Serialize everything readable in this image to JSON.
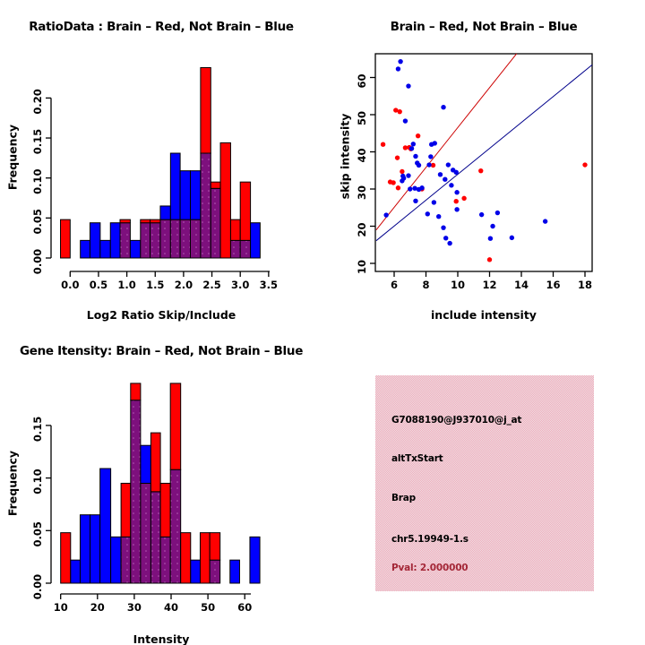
{
  "figure": {
    "background": "#ffffff",
    "colors": {
      "red": "#ff0000",
      "blue": "#0000ff",
      "scatter_blue": "#0000e8",
      "purple": "#7d107d",
      "purple_dot": "#b55cb5",
      "red_line": "#cd0000",
      "blue_line": "#00008b",
      "axis": "#000000",
      "pval_red": "#a42838",
      "pink_checker_a": "#f5a8ba",
      "pink_checker_b": "#e9e2e4"
    }
  },
  "chart_data": [
    {
      "id": "ratio_histogram",
      "type": "bar",
      "subtype": "overlapping_histograms",
      "title": "RatioData : Brain – Red, Not Brain – Blue",
      "xlabel": "Log2 Ratio Skip/Include",
      "ylabel": "Frequency",
      "xlim": [
        -0.25,
        3.5
      ],
      "ylim": [
        0,
        0.24
      ],
      "x_ticks": [
        "0.0",
        "0.5",
        "1.0",
        "1.5",
        "2.0",
        "2.5",
        "3.0",
        "3.5"
      ],
      "y_ticks": [
        "0.00",
        "0.05",
        "0.10",
        "0.15",
        "0.20"
      ],
      "legend": {
        "red_series": "Brain",
        "blue_series": "Not Brain",
        "overlap": "purple"
      },
      "bars_format": [
        "x0",
        "x1",
        "red_height",
        "blue_height"
      ],
      "bars": [
        [
          -0.17,
          0.0,
          0.048,
          0
        ],
        [
          0.18,
          0.35,
          0,
          0.022
        ],
        [
          0.35,
          0.53,
          0,
          0.044
        ],
        [
          0.53,
          0.71,
          0,
          0.022
        ],
        [
          0.71,
          0.88,
          0,
          0.044
        ],
        [
          0.88,
          1.06,
          0.048,
          0.044
        ],
        [
          1.06,
          1.24,
          0,
          0.022
        ],
        [
          1.24,
          1.41,
          0.048,
          0.044
        ],
        [
          1.41,
          1.59,
          0.048,
          0.044
        ],
        [
          1.59,
          1.77,
          0.048,
          0.065
        ],
        [
          1.77,
          1.94,
          0.048,
          0.131
        ],
        [
          1.94,
          2.12,
          0.048,
          0.109
        ],
        [
          2.12,
          2.3,
          0.048,
          0.109
        ],
        [
          2.3,
          2.48,
          0.238,
          0.131
        ],
        [
          2.48,
          2.65,
          0.095,
          0.087
        ],
        [
          2.65,
          2.83,
          0.144,
          0
        ],
        [
          2.83,
          3.0,
          0.048,
          0.022
        ],
        [
          3.0,
          3.18,
          0.095,
          0.022
        ],
        [
          3.18,
          3.35,
          0,
          0.044
        ]
      ]
    },
    {
      "id": "intensity_scatter",
      "type": "scatter",
      "title": "Brain – Red, Not Brain – Blue",
      "xlabel": "include intensity",
      "ylabel": "skip intensity",
      "xlim": [
        4.9,
        18.5
      ],
      "ylim": [
        8,
        66.5
      ],
      "x_ticks": [
        "6",
        "8",
        "10",
        "12",
        "14",
        "16",
        "18"
      ],
      "y_ticks": [
        "10",
        "20",
        "30",
        "40",
        "50",
        "60"
      ],
      "series": [
        {
          "name": "Brain",
          "color_key": "red",
          "points": [
            [
              5.3,
              42.0
            ],
            [
              6.1,
              51.2
            ],
            [
              6.35,
              50.8
            ],
            [
              6.2,
              38.4
            ],
            [
              5.75,
              31.9
            ],
            [
              5.95,
              31.7
            ],
            [
              6.25,
              30.3
            ],
            [
              6.5,
              34.7
            ],
            [
              6.7,
              41.1
            ],
            [
              6.95,
              41.2
            ],
            [
              7.05,
              40.8
            ],
            [
              7.5,
              44.3
            ],
            [
              8.45,
              36.4
            ],
            [
              7.75,
              30.0
            ],
            [
              9.9,
              26.7
            ],
            [
              10.4,
              27.5
            ],
            [
              11.45,
              34.9
            ],
            [
              12.0,
              11.0
            ],
            [
              18.0,
              36.5
            ]
          ]
        },
        {
          "name": "Not Brain",
          "color_key": "scatter_blue",
          "points": [
            [
              6.4,
              64.3
            ],
            [
              6.25,
              62.3
            ],
            [
              6.9,
              57.7
            ],
            [
              9.1,
              52.0
            ],
            [
              6.7,
              48.3
            ],
            [
              7.2,
              42.1
            ],
            [
              8.35,
              42.0
            ],
            [
              8.55,
              42.3
            ],
            [
              7.1,
              40.9
            ],
            [
              7.35,
              38.8
            ],
            [
              8.3,
              38.7
            ],
            [
              7.45,
              37.0
            ],
            [
              7.55,
              36.4
            ],
            [
              8.2,
              36.5
            ],
            [
              9.4,
              36.5
            ],
            [
              6.55,
              33.5
            ],
            [
              6.9,
              33.6
            ],
            [
              6.6,
              32.9
            ],
            [
              6.5,
              32.2
            ],
            [
              8.9,
              33.9
            ],
            [
              9.2,
              32.6
            ],
            [
              9.7,
              35.1
            ],
            [
              9.9,
              34.5
            ],
            [
              7.0,
              30.0
            ],
            [
              7.3,
              30.2
            ],
            [
              7.55,
              29.9
            ],
            [
              7.75,
              30.3
            ],
            [
              9.6,
              31.0
            ],
            [
              9.95,
              29.1
            ],
            [
              7.35,
              26.8
            ],
            [
              8.5,
              26.4
            ],
            [
              8.1,
              23.3
            ],
            [
              8.8,
              22.6
            ],
            [
              9.95,
              24.5
            ],
            [
              5.5,
              23.0
            ],
            [
              9.1,
              19.6
            ],
            [
              9.25,
              16.8
            ],
            [
              9.5,
              15.4
            ],
            [
              11.5,
              23.1
            ],
            [
              12.5,
              23.6
            ],
            [
              12.2,
              20.0
            ],
            [
              12.05,
              16.7
            ],
            [
              13.4,
              16.9
            ],
            [
              15.5,
              21.3
            ]
          ]
        }
      ],
      "fit_lines": [
        {
          "name": "brain fit",
          "color_key": "red_line",
          "p1": [
            4.87,
            19.0
          ],
          "p2": [
            13.7,
            66.4
          ]
        },
        {
          "name": "not brain fit",
          "color_key": "blue_line",
          "p1": [
            4.87,
            16.1
          ],
          "p2": [
            18.45,
            63.4
          ]
        }
      ]
    },
    {
      "id": "gene_intensity_histogram",
      "type": "bar",
      "subtype": "overlapping_histograms",
      "title": "Gene Itensity: Brain – Red, Not Brain – Blue",
      "xlabel": "Intensity",
      "ylabel": "Frequency",
      "xlim": [
        10,
        65
      ],
      "ylim": [
        0,
        0.19
      ],
      "x_ticks": [
        "10",
        "20",
        "30",
        "40",
        "50",
        "60"
      ],
      "y_ticks": [
        "0.00",
        "0.05",
        "0.10",
        "0.15"
      ],
      "legend": {
        "red_series": "Brain",
        "blue_series": "Not Brain",
        "overlap": "purple"
      },
      "bars_format": [
        "x0",
        "x1",
        "red_height",
        "blue_height"
      ],
      "bars": [
        [
          10.0,
          12.7,
          0.048,
          0
        ],
        [
          12.7,
          15.3,
          0,
          0.022
        ],
        [
          15.3,
          18.0,
          0,
          0.065
        ],
        [
          18.0,
          20.7,
          0,
          0.065
        ],
        [
          20.7,
          23.6,
          0,
          0.109
        ],
        [
          23.6,
          26.4,
          0,
          0.044
        ],
        [
          26.4,
          29.0,
          0.095,
          0.044
        ],
        [
          29.0,
          31.7,
          0.19,
          0.174
        ],
        [
          31.7,
          34.5,
          0.095,
          0.131
        ],
        [
          34.5,
          37.1,
          0.143,
          0.087
        ],
        [
          37.1,
          39.8,
          0.095,
          0.044
        ],
        [
          39.8,
          42.6,
          0.19,
          0.108
        ],
        [
          42.6,
          45.3,
          0.048,
          0
        ],
        [
          45.3,
          47.9,
          0,
          0.022
        ],
        [
          47.9,
          50.5,
          0.048,
          0
        ],
        [
          50.5,
          53.3,
          0.048,
          0.022
        ],
        [
          56.0,
          58.6,
          0,
          0.022
        ],
        [
          61.4,
          64.1,
          0,
          0.044
        ]
      ]
    },
    {
      "id": "info_panel",
      "type": "table",
      "lines": [
        {
          "label": "probe-id",
          "text": "G7088190@J937010@j_at",
          "color": "black"
        },
        {
          "label": "event-type",
          "text": "altTxStart",
          "color": "black"
        },
        {
          "label": "gene-name",
          "text": "Brap",
          "color": "black"
        },
        {
          "label": "location",
          "text": "chr5.19949-1.s",
          "color": "black"
        },
        {
          "label": "pvalue",
          "text": "Pval: 2.000000",
          "color": "#a42838"
        }
      ]
    }
  ]
}
